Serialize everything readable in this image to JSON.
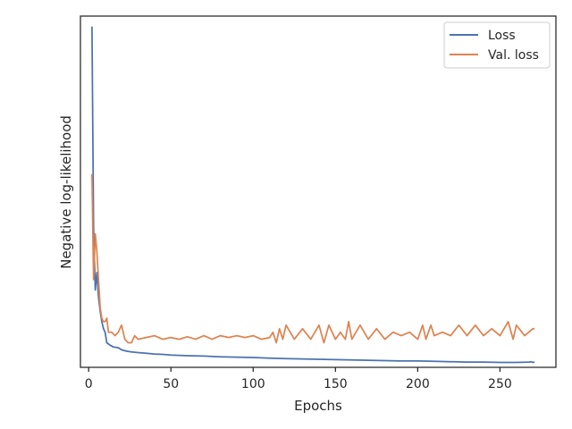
{
  "chart_data": {
    "type": "line",
    "title": "",
    "xlabel": "Epochs",
    "ylabel": "Negative log-likelihood",
    "xlim": [
      -5,
      284
    ],
    "ylim": [
      0,
      100
    ],
    "xticks": [
      0,
      50,
      100,
      150,
      200,
      250
    ],
    "yticks_visible": false,
    "grid": false,
    "legend": "top-right",
    "series": [
      {
        "name": "Loss",
        "color": "#4c72b0",
        "x": [
          2,
          3,
          4,
          5,
          6,
          7,
          8,
          9,
          10,
          11,
          13,
          15,
          18,
          20,
          23,
          26,
          30,
          35,
          40,
          45,
          50,
          60,
          70,
          80,
          90,
          100,
          110,
          120,
          130,
          140,
          150,
          160,
          170,
          180,
          190,
          200,
          210,
          220,
          230,
          240,
          250,
          260,
          268,
          269,
          270,
          271
        ],
        "y": [
          97,
          40,
          22,
          27,
          20,
          16,
          13,
          11,
          10,
          7,
          6.3,
          5.8,
          5.6,
          5,
          4.6,
          4.4,
          4.2,
          4.0,
          3.8,
          3.7,
          3.5,
          3.3,
          3.2,
          3.0,
          2.9,
          2.8,
          2.6,
          2.5,
          2.4,
          2.3,
          2.2,
          2.1,
          2.0,
          1.9,
          1.8,
          1.8,
          1.7,
          1.6,
          1.5,
          1.5,
          1.4,
          1.4,
          1.5,
          1.6,
          1.4,
          1.5
        ]
      },
      {
        "name": "Val. loss",
        "color": "#dd8452",
        "x": [
          2,
          3,
          4,
          5,
          6,
          7,
          8,
          9,
          10,
          11,
          12,
          14,
          16,
          18,
          20,
          22,
          24,
          26,
          28,
          30,
          35,
          40,
          45,
          50,
          55,
          60,
          65,
          70,
          75,
          80,
          85,
          90,
          95,
          100,
          105,
          110,
          112,
          114,
          116,
          118,
          120,
          125,
          130,
          135,
          140,
          143,
          146,
          150,
          153,
          156,
          158,
          160,
          165,
          170,
          175,
          180,
          185,
          190,
          195,
          200,
          203,
          205,
          208,
          210,
          215,
          220,
          225,
          230,
          235,
          240,
          245,
          250,
          255,
          258,
          260,
          265,
          270,
          271
        ],
        "y": [
          55,
          25,
          38,
          33,
          25,
          17,
          14,
          13,
          13,
          14,
          10,
          10,
          9,
          10,
          12,
          8,
          7,
          7,
          9,
          8,
          8.5,
          9,
          8,
          8.5,
          8,
          8.7,
          8,
          9,
          8,
          9,
          8.5,
          9,
          8.5,
          9,
          8,
          8.5,
          10,
          7,
          11,
          8,
          12,
          8,
          11,
          8,
          12,
          7,
          12,
          8,
          10,
          8,
          13,
          8,
          12,
          8,
          11,
          8,
          10,
          9,
          10,
          8,
          12,
          8,
          12,
          9,
          10,
          9,
          12,
          9,
          12,
          9,
          11,
          9,
          13,
          8,
          12,
          9,
          11,
          11
        ]
      }
    ]
  }
}
